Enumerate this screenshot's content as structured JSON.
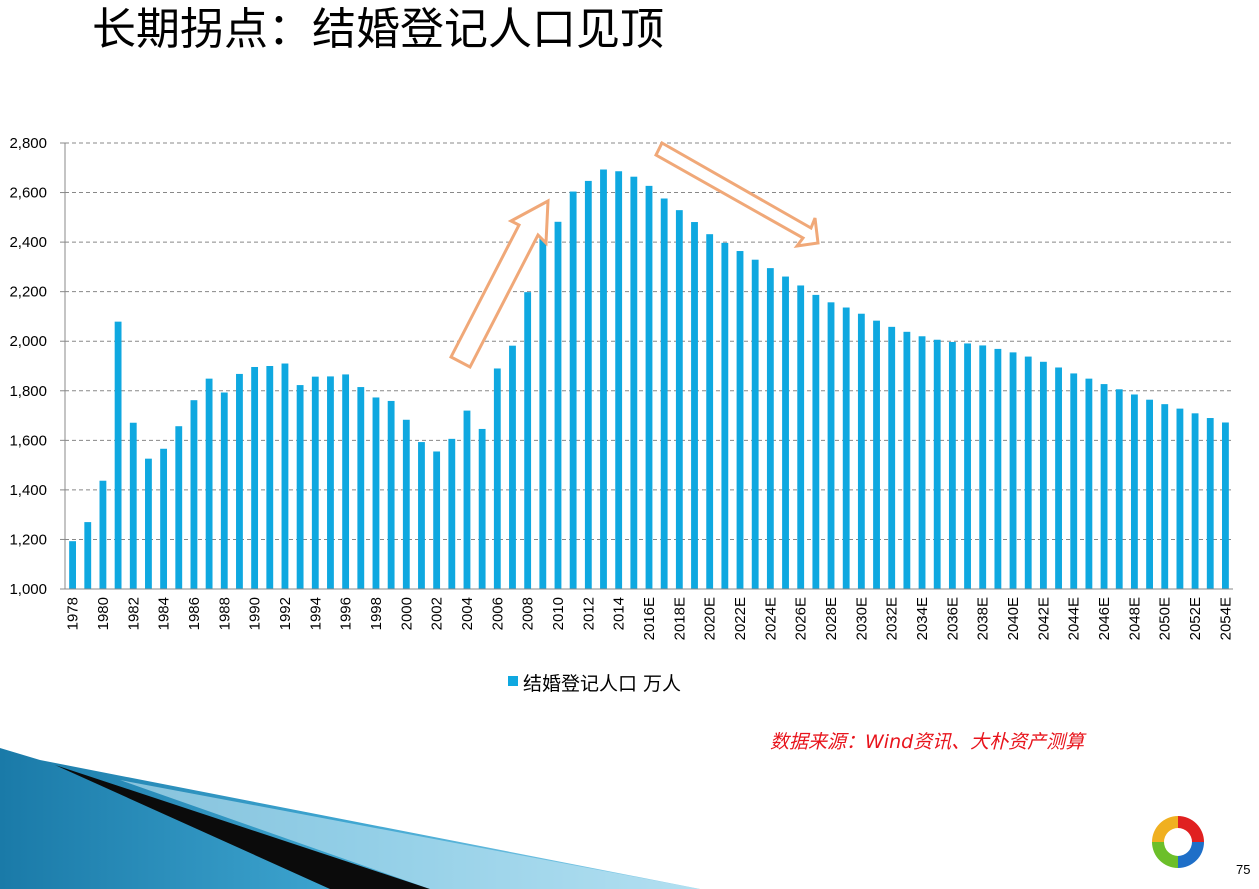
{
  "slide": {
    "title": "长期拐点：结婚登记人口见顶",
    "source": "数据来源：Wind资讯、大朴资产测算",
    "page_number": "75"
  },
  "colors": {
    "bar": "#0fa8e0",
    "arrow": "#f0a878",
    "source_text": "#e8141c",
    "grid": "#888888"
  },
  "chart_data": {
    "type": "bar",
    "categories": [
      "1978",
      "1979",
      "1980",
      "1981",
      "1982",
      "1983",
      "1984",
      "1985",
      "1986",
      "1987",
      "1988",
      "1989",
      "1990",
      "1991",
      "1992",
      "1993",
      "1994",
      "1995",
      "1996",
      "1997",
      "1998",
      "1999",
      "2000",
      "2001",
      "2002",
      "2003",
      "2004",
      "2005",
      "2006",
      "2007",
      "2008",
      "2009",
      "2010",
      "2011",
      "2012",
      "2013",
      "2014",
      "2015",
      "2016E",
      "2017E",
      "2018E",
      "2019E",
      "2020E",
      "2021E",
      "2022E",
      "2023E",
      "2024E",
      "2025E",
      "2026E",
      "2027E",
      "2028E",
      "2029E",
      "2030E",
      "2031E",
      "2032E",
      "2033E",
      "2034E",
      "2035E",
      "2036E",
      "2037E",
      "2038E",
      "2039E",
      "2040E",
      "2041E",
      "2042E",
      "2043E",
      "2044E",
      "2045E",
      "2046E",
      "2047E",
      "2048E",
      "2049E",
      "2050E",
      "2051E",
      "2052E",
      "2053E",
      "2054E"
    ],
    "series": [
      {
        "name": "结婚登记人口 万人",
        "values": [
          1193,
          1270,
          1437,
          2079,
          1671,
          1526,
          1566,
          1657,
          1762,
          1849,
          1793,
          1868,
          1896,
          1900,
          1910,
          1823,
          1857,
          1858,
          1866,
          1815,
          1773,
          1759,
          1683,
          1593,
          1555,
          1606,
          1720,
          1646,
          1890,
          1982,
          2198,
          2424,
          2482,
          2604,
          2647,
          2693,
          2686,
          2664,
          2627,
          2576,
          2529,
          2481,
          2432,
          2397,
          2364,
          2329,
          2295,
          2261,
          2225,
          2187,
          2157,
          2136,
          2111,
          2083,
          2058,
          2038,
          2020,
          2006,
          1997,
          1991,
          1983,
          1969,
          1955,
          1938,
          1917,
          1894,
          1870,
          1849,
          1827,
          1806,
          1785,
          1764,
          1746,
          1728,
          1709,
          1690,
          1672
        ]
      }
    ],
    "tick_labels_x": [
      "1978",
      "1980",
      "1982",
      "1984",
      "1986",
      "1988",
      "1990",
      "1992",
      "1994",
      "1996",
      "1998",
      "2000",
      "2002",
      "2004",
      "2006",
      "2008",
      "2010",
      "2012",
      "2014",
      "2016E",
      "2018E",
      "2020E",
      "2022E",
      "2024E",
      "2026E",
      "2028E",
      "2030E",
      "2032E",
      "2034E",
      "2036E",
      "2038E",
      "2040E",
      "2042E",
      "2044E",
      "2046E",
      "2048E",
      "2050E",
      "2052E",
      "2054E"
    ],
    "y_ticks": [
      "1,000",
      "1,200",
      "1,400",
      "1,600",
      "1,800",
      "2,000",
      "2,200",
      "2,400",
      "2,600",
      "2,800"
    ],
    "ylim": [
      1000,
      2800
    ],
    "grid": "horizontal dashed",
    "legend": "bottom-center",
    "legend_label": "结婚登记人口 万人"
  }
}
